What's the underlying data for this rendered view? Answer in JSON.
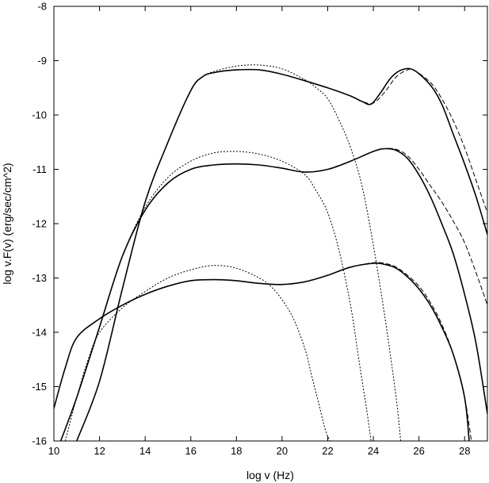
{
  "chart_data": {
    "type": "line",
    "title": "",
    "xlabel": "log v (Hz)",
    "ylabel": "log v.F(v) (erg/sec/cm^2)",
    "xlim": [
      10,
      29
    ],
    "ylim": [
      -16,
      -8
    ],
    "x_ticks": [
      10,
      12,
      14,
      16,
      18,
      20,
      22,
      24,
      26,
      28
    ],
    "y_ticks": [
      -8,
      -9,
      -10,
      -11,
      -12,
      -13,
      -14,
      -15,
      -16
    ],
    "grid": false,
    "legend": "none",
    "series": [
      {
        "style": "solid",
        "color": "#000000",
        "x": [
          11.0,
          12.0,
          13.0,
          14.0,
          15.0,
          16.0,
          16.5,
          17.0,
          18.0,
          19.0,
          20.0,
          21.0,
          22.0,
          23.0,
          23.5,
          23.9,
          24.3,
          24.8,
          25.3,
          25.8,
          26.5,
          27.0,
          27.5,
          28.0,
          28.5,
          29.0
        ],
        "y": [
          -16.0,
          -14.9,
          -13.2,
          -11.6,
          -10.5,
          -9.55,
          -9.3,
          -9.22,
          -9.17,
          -9.17,
          -9.25,
          -9.37,
          -9.5,
          -9.65,
          -9.75,
          -9.8,
          -9.6,
          -9.3,
          -9.16,
          -9.18,
          -9.45,
          -9.8,
          -10.35,
          -10.9,
          -11.5,
          -12.2
        ]
      },
      {
        "style": "dotted",
        "color": "#000000",
        "x": [
          11.0,
          12.0,
          13.0,
          14.0,
          15.0,
          16.0,
          16.5,
          17.0,
          18.0,
          19.0,
          20.0,
          21.0,
          21.5,
          22.0,
          22.5,
          23.0,
          23.5,
          24.0,
          24.5,
          25.0,
          25.2
        ],
        "y": [
          -16.0,
          -14.9,
          -13.2,
          -11.6,
          -10.5,
          -9.55,
          -9.3,
          -9.2,
          -9.1,
          -9.08,
          -9.15,
          -9.35,
          -9.5,
          -9.7,
          -10.1,
          -10.6,
          -11.3,
          -12.4,
          -13.7,
          -15.2,
          -16.0
        ]
      },
      {
        "style": "dashed",
        "color": "#000000",
        "x": [
          23.0,
          23.5,
          24.0,
          24.5,
          25.0,
          25.5,
          25.8,
          26.5,
          27.0,
          27.5,
          28.0,
          28.5,
          29.0
        ],
        "y": [
          -9.65,
          -9.75,
          -9.78,
          -9.58,
          -9.3,
          -9.17,
          -9.18,
          -9.4,
          -9.7,
          -10.1,
          -10.6,
          -11.2,
          -11.8
        ]
      },
      {
        "style": "solid",
        "color": "#000000",
        "x": [
          10.3,
          11.0,
          12.0,
          13.0,
          14.0,
          15.0,
          16.0,
          17.0,
          18.0,
          19.0,
          20.0,
          21.0,
          22.0,
          23.0,
          24.0,
          24.5,
          25.0,
          25.5,
          26.0,
          26.5,
          27.0,
          27.5,
          28.0,
          28.5,
          29.0
        ],
        "y": [
          -16.0,
          -15.2,
          -13.9,
          -12.6,
          -11.75,
          -11.25,
          -11.0,
          -10.92,
          -10.9,
          -10.92,
          -10.98,
          -11.05,
          -11.0,
          -10.85,
          -10.67,
          -10.62,
          -10.65,
          -10.8,
          -11.1,
          -11.5,
          -12.0,
          -12.55,
          -13.3,
          -14.2,
          -15.5
        ]
      },
      {
        "style": "dotted",
        "color": "#000000",
        "x": [
          10.3,
          11.0,
          12.0,
          13.0,
          14.0,
          15.0,
          16.0,
          17.0,
          18.0,
          19.0,
          20.0,
          21.0,
          21.5,
          22.0,
          22.5,
          23.0,
          23.4,
          23.7,
          23.9
        ],
        "y": [
          -16.0,
          -15.2,
          -13.9,
          -12.6,
          -11.7,
          -11.15,
          -10.85,
          -10.7,
          -10.67,
          -10.72,
          -10.85,
          -11.1,
          -11.4,
          -11.8,
          -12.5,
          -13.5,
          -14.6,
          -15.4,
          -16.0
        ]
      },
      {
        "style": "dashed",
        "color": "#000000",
        "x": [
          22.0,
          23.0,
          24.0,
          24.5,
          25.0,
          25.5,
          26.0,
          26.5,
          27.0,
          27.5,
          28.0,
          28.5,
          29.0
        ],
        "y": [
          -11.0,
          -10.85,
          -10.67,
          -10.62,
          -10.63,
          -10.75,
          -11.0,
          -11.3,
          -11.6,
          -11.95,
          -12.35,
          -12.9,
          -13.5
        ]
      },
      {
        "style": "solid",
        "color": "#000000",
        "x": [
          10.0,
          10.5,
          11.0,
          12.0,
          13.0,
          14.0,
          15.0,
          16.0,
          17.0,
          18.0,
          19.0,
          20.0,
          21.0,
          22.0,
          23.0,
          24.0,
          24.5,
          25.0,
          25.5,
          26.0,
          26.5,
          27.0,
          27.5,
          28.0,
          28.2
        ],
        "y": [
          -15.4,
          -14.65,
          -14.1,
          -13.75,
          -13.5,
          -13.3,
          -13.15,
          -13.05,
          -13.03,
          -13.05,
          -13.1,
          -13.12,
          -13.07,
          -12.95,
          -12.8,
          -12.73,
          -12.75,
          -12.82,
          -12.98,
          -13.2,
          -13.5,
          -13.9,
          -14.4,
          -15.2,
          -16.0
        ]
      },
      {
        "style": "dotted",
        "color": "#000000",
        "x": [
          10.5,
          11.0,
          11.5,
          12.0,
          13.0,
          14.0,
          15.0,
          16.0,
          17.0,
          18.0,
          19.0,
          19.5,
          20.0,
          20.5,
          21.0,
          21.3,
          21.6,
          21.9,
          22.1
        ],
        "y": [
          -16.0,
          -15.2,
          -14.5,
          -14.0,
          -13.55,
          -13.25,
          -13.0,
          -12.85,
          -12.77,
          -12.82,
          -13.0,
          -13.15,
          -13.4,
          -13.75,
          -14.3,
          -14.8,
          -15.3,
          -15.8,
          -16.0
        ]
      },
      {
        "style": "dashed",
        "color": "#000000",
        "x": [
          20.0,
          21.0,
          22.0,
          23.0,
          24.0,
          24.5,
          25.0,
          25.5,
          26.0,
          26.5,
          27.0,
          27.5,
          28.0,
          28.3
        ],
        "y": [
          -13.12,
          -13.07,
          -12.95,
          -12.8,
          -12.72,
          -12.73,
          -12.8,
          -12.95,
          -13.15,
          -13.45,
          -13.85,
          -14.4,
          -15.2,
          -16.0
        ]
      }
    ]
  }
}
